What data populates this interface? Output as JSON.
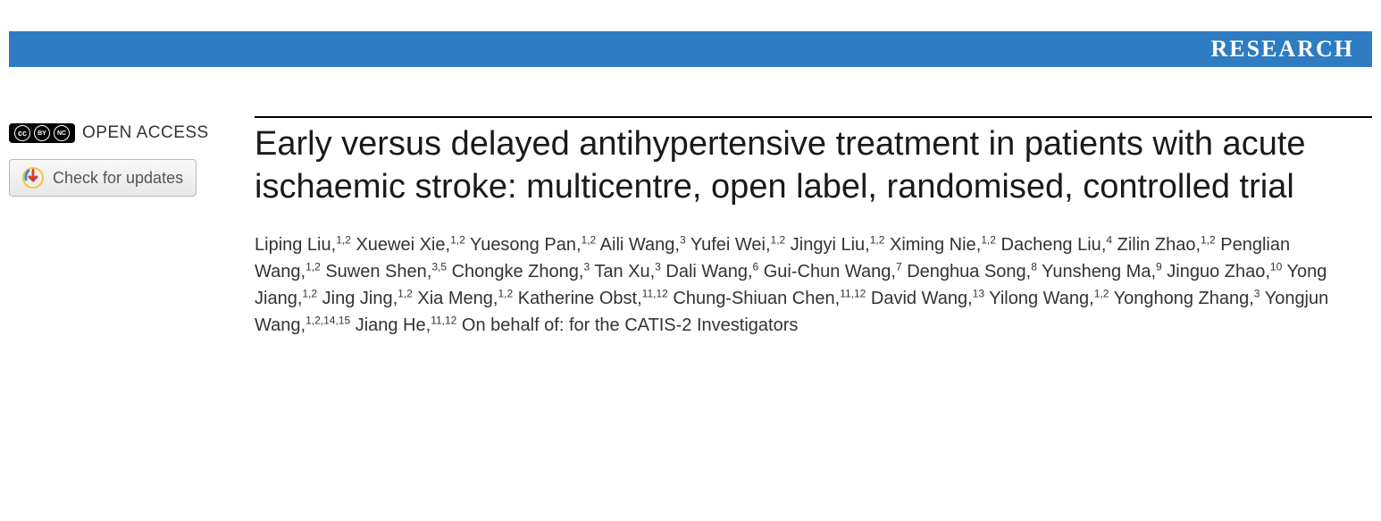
{
  "banner": {
    "label": "RESEARCH",
    "bg_color": "#2e7cc2",
    "text_color": "#ffffff"
  },
  "left": {
    "open_access_label": "OPEN ACCESS",
    "cc_symbols": [
      "cc",
      "BY",
      "NC"
    ],
    "updates_label": "Check for updates"
  },
  "article": {
    "title": "Early versus delayed antihypertensive treatment in patients with acute ischaemic stroke: multicentre, open label, randomised, controlled trial",
    "title_color": "#1a1a1a",
    "title_fontsize": 38,
    "author_fontsize": 20,
    "authors": [
      {
        "name": "Liping Liu",
        "aff": "1,2"
      },
      {
        "name": "Xuewei Xie",
        "aff": "1,2"
      },
      {
        "name": "Yuesong Pan",
        "aff": "1,2"
      },
      {
        "name": "Aili Wang",
        "aff": "3"
      },
      {
        "name": "Yufei Wei",
        "aff": "1,2"
      },
      {
        "name": "Jingyi Liu",
        "aff": "1,2"
      },
      {
        "name": "Ximing Nie",
        "aff": "1,2"
      },
      {
        "name": "Dacheng Liu",
        "aff": "4"
      },
      {
        "name": "Zilin Zhao",
        "aff": "1,2"
      },
      {
        "name": "Penglian Wang",
        "aff": "1,2"
      },
      {
        "name": "Suwen Shen",
        "aff": "3,5"
      },
      {
        "name": "Chongke Zhong",
        "aff": "3"
      },
      {
        "name": "Tan Xu",
        "aff": "3"
      },
      {
        "name": "Dali Wang",
        "aff": "6"
      },
      {
        "name": "Gui-Chun Wang",
        "aff": "7"
      },
      {
        "name": "Denghua Song",
        "aff": "8"
      },
      {
        "name": "Yunsheng Ma",
        "aff": "9"
      },
      {
        "name": "Jinguo Zhao",
        "aff": "10"
      },
      {
        "name": "Yong Jiang",
        "aff": "1,2"
      },
      {
        "name": "Jing Jing",
        "aff": "1,2"
      },
      {
        "name": "Xia Meng",
        "aff": "1,2"
      },
      {
        "name": "Katherine Obst",
        "aff": "11,12"
      },
      {
        "name": "Chung-Shiuan Chen",
        "aff": "11,12"
      },
      {
        "name": "David Wang",
        "aff": "13"
      },
      {
        "name": "Yilong Wang",
        "aff": "1,2"
      },
      {
        "name": "Yonghong Zhang",
        "aff": "3"
      },
      {
        "name": "Yongjun Wang",
        "aff": "1,2,14,15"
      },
      {
        "name": "Jiang He",
        "aff": "11,12"
      }
    ],
    "suffix": "On behalf of: for the CATIS-2 Investigators"
  },
  "colors": {
    "rule": "#000000",
    "body_text": "#333333",
    "button_border": "#b8b8b8"
  }
}
